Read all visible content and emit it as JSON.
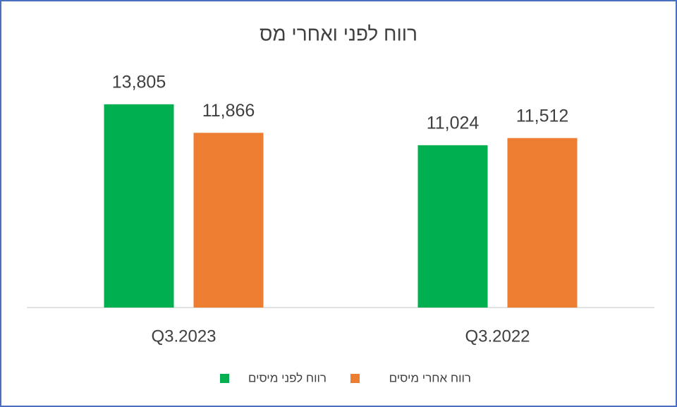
{
  "chart_data": {
    "type": "bar",
    "title": "רווח לפני ואחרי מס",
    "categories": [
      "Q3.2023",
      "Q3.2022"
    ],
    "series": [
      {
        "name": "רווח לפני מיסים",
        "color": "#00b050",
        "values": [
          13805,
          11024
        ],
        "value_labels": [
          "13,805",
          "11,024"
        ]
      },
      {
        "name": "רווח אחרי מיסים",
        "color": "#ed7d31",
        "values": [
          11866,
          11512
        ],
        "value_labels": [
          "11,866",
          "11,512"
        ]
      }
    ],
    "ylim": [
      0,
      16000
    ]
  }
}
